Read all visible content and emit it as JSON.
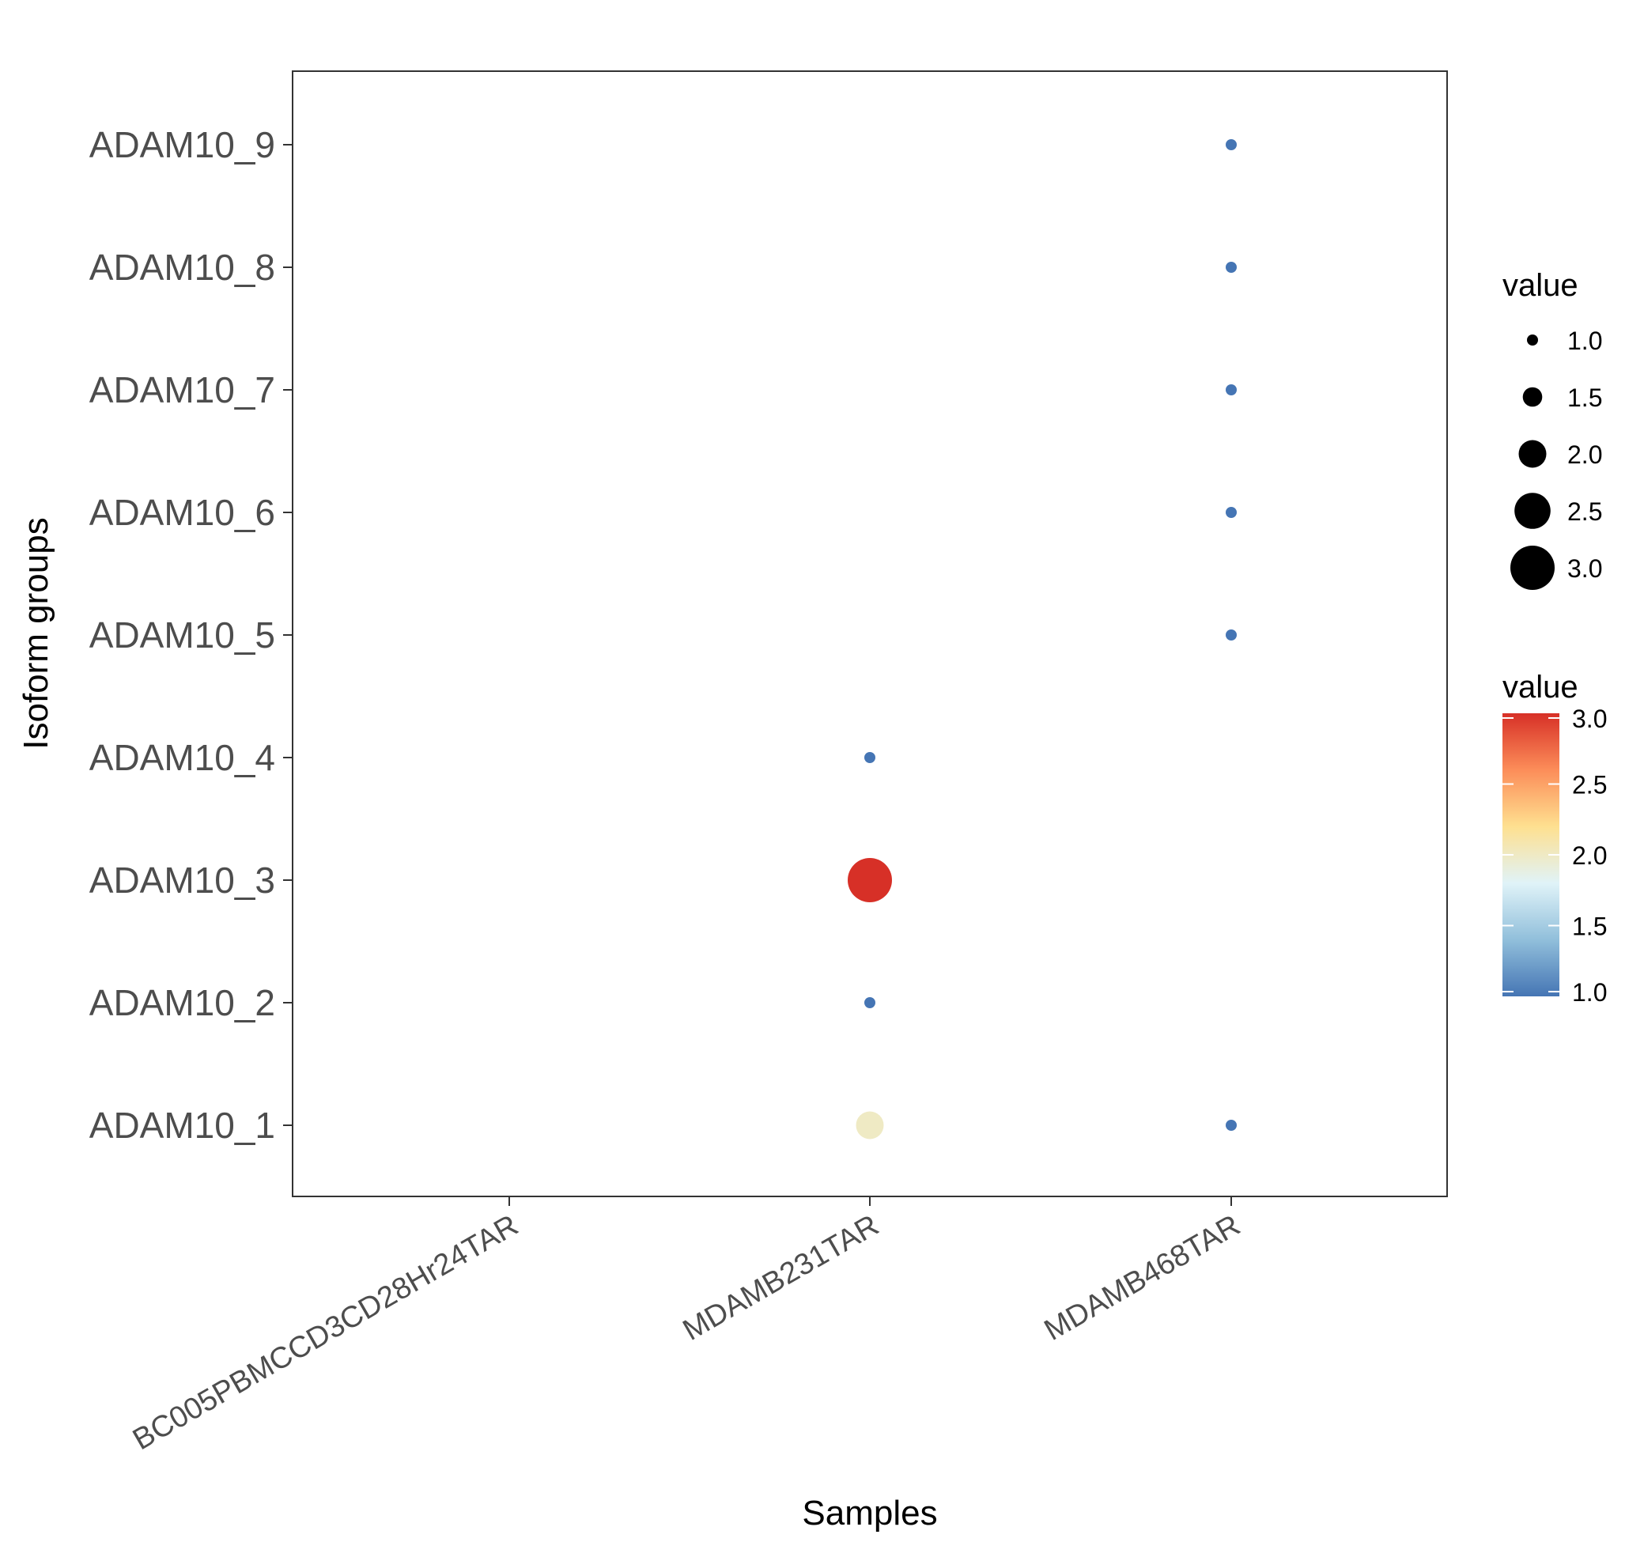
{
  "chart_data": {
    "type": "scatter",
    "xlabel": "Samples",
    "ylabel": "Isoform groups",
    "x_categories": [
      "BC005PBMCCD3CD28Hr24TAR",
      "MDAMB231TAR",
      "MDAMB468TAR"
    ],
    "y_categories": [
      "ADAM10_1",
      "ADAM10_2",
      "ADAM10_3",
      "ADAM10_4",
      "ADAM10_5",
      "ADAM10_6",
      "ADAM10_7",
      "ADAM10_8",
      "ADAM10_9"
    ],
    "points": [
      {
        "x": "MDAMB231TAR",
        "y": "ADAM10_1",
        "value": 2.0
      },
      {
        "x": "MDAMB231TAR",
        "y": "ADAM10_2",
        "value": 1.0
      },
      {
        "x": "MDAMB231TAR",
        "y": "ADAM10_3",
        "value": 3.0
      },
      {
        "x": "MDAMB231TAR",
        "y": "ADAM10_4",
        "value": 1.0
      },
      {
        "x": "MDAMB468TAR",
        "y": "ADAM10_1",
        "value": 1.0
      },
      {
        "x": "MDAMB468TAR",
        "y": "ADAM10_5",
        "value": 1.0
      },
      {
        "x": "MDAMB468TAR",
        "y": "ADAM10_6",
        "value": 1.0
      },
      {
        "x": "MDAMB468TAR",
        "y": "ADAM10_7",
        "value": 1.0
      },
      {
        "x": "MDAMB468TAR",
        "y": "ADAM10_8",
        "value": 1.0
      },
      {
        "x": "MDAMB468TAR",
        "y": "ADAM10_9",
        "value": 1.0
      }
    ],
    "size_legend": {
      "title": "value",
      "breaks": [
        1.0,
        1.5,
        2.0,
        2.5,
        3.0
      ],
      "labels": [
        "1.0",
        "1.5",
        "2.0",
        "2.5",
        "3.0"
      ]
    },
    "color_legend": {
      "title": "value",
      "range": [
        1.0,
        3.0
      ],
      "breaks": [
        1.0,
        1.5,
        2.0,
        2.5,
        3.0
      ],
      "labels": [
        "1.0",
        "1.5",
        "2.0",
        "2.5",
        "3.0"
      ],
      "palette": [
        "#4575b4",
        "#91bfdb",
        "#e0f3f8",
        "#fee090",
        "#fc8d59",
        "#d73027"
      ]
    },
    "grid": false,
    "legend_position": "right"
  }
}
